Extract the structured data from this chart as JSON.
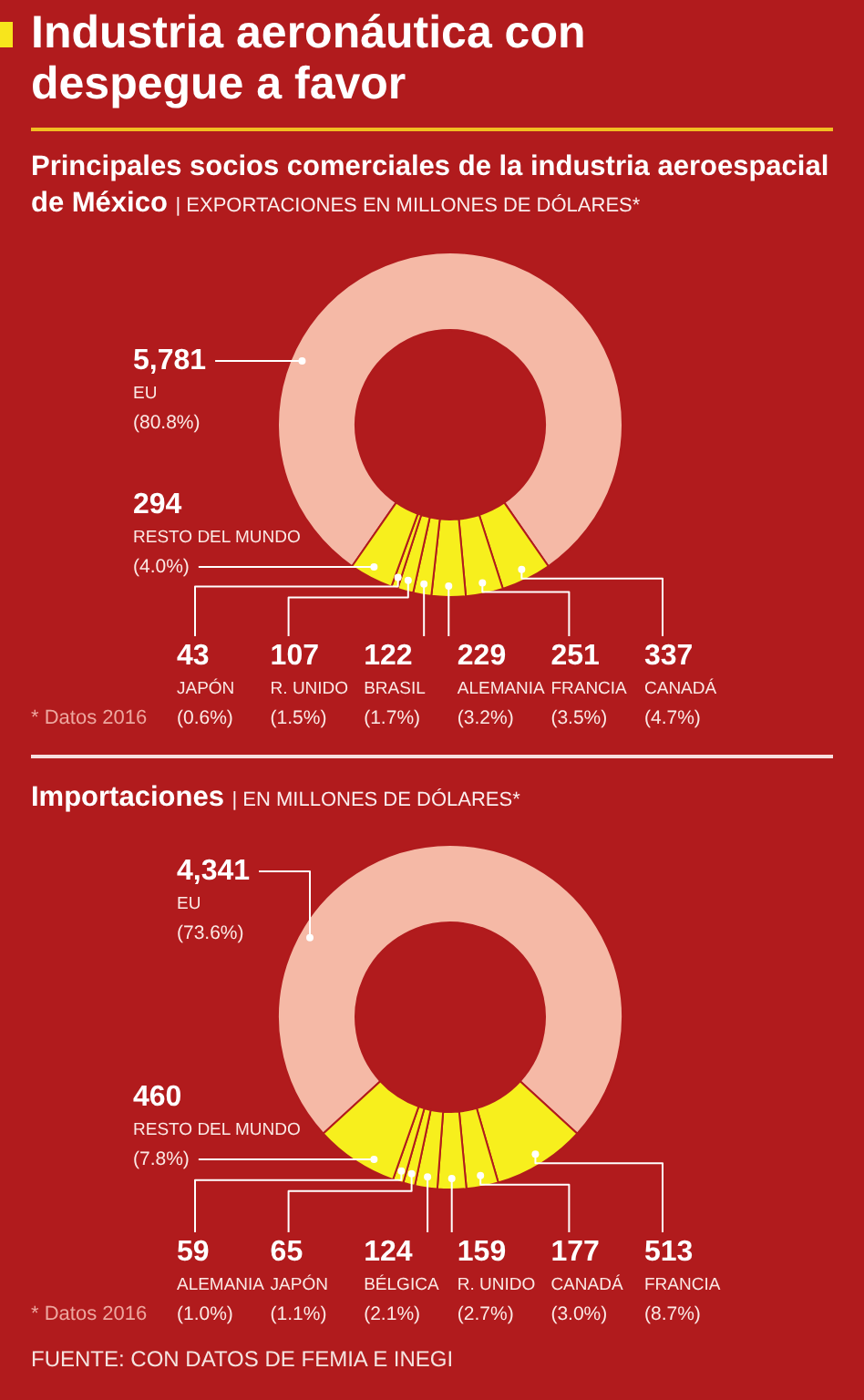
{
  "chart_data": [
    {
      "type": "donut",
      "title": "Industria aeronáutica con despegue a favor",
      "subtitle": "Principales socios comerciales de la industria aeroespacial de México | EXPORTACIONES EN MILLONES DE DÓLARES*",
      "categories": [
        "EU",
        "CANADÁ",
        "FRANCIA",
        "ALEMANIA",
        "BRASIL",
        "R. UNIDO",
        "JAPÓN",
        "RESTO DEL MUNDO"
      ],
      "values": [
        5781,
        337,
        251,
        229,
        122,
        107,
        43,
        294
      ],
      "colors": [
        "#f5b9a6",
        "#f7ef1d",
        "#f7ef1d",
        "#f7ef1d",
        "#f7ef1d",
        "#f7ef1d",
        "#f7ef1d",
        "#f7ef1d"
      ],
      "value_labels": [
        "5,781",
        "337",
        "251",
        "229",
        "122",
        "107",
        "43",
        "294"
      ],
      "annotations": [
        {
          "text": "(80.8%)",
          "x": "EU"
        },
        {
          "text": "(4.7%)",
          "x": "CANADÁ"
        },
        {
          "text": "(3.5%)",
          "x": "FRANCIA"
        },
        {
          "text": "(3.2%)",
          "x": "ALEMANIA"
        },
        {
          "text": "(1.7%)",
          "x": "BRASIL"
        },
        {
          "text": "(1.5%)",
          "x": "R. UNIDO"
        },
        {
          "text": "(0.6%)",
          "x": "JAPÓN"
        },
        {
          "text": "(4.0%)",
          "x": "RESTO DEL MUNDO"
        },
        "* Datos 2016"
      ]
    },
    {
      "type": "donut",
      "title": "Importaciones | EN MILLONES DE DÓLARES*",
      "categories": [
        "EU",
        "FRANCIA",
        "CANADÁ",
        "R. UNIDO",
        "BÉLGICA",
        "JAPÓN",
        "ALEMANIA",
        "RESTO DEL MUNDO"
      ],
      "values": [
        4341,
        513,
        177,
        159,
        124,
        65,
        59,
        460
      ],
      "colors": [
        "#f5b9a6",
        "#f7ef1d",
        "#f7ef1d",
        "#f7ef1d",
        "#f7ef1d",
        "#f7ef1d",
        "#f7ef1d",
        "#f7ef1d"
      ],
      "value_labels": [
        "4,341",
        "513",
        "177",
        "159",
        "124",
        "65",
        "59",
        "460"
      ],
      "annotations": [
        {
          "text": "(73.6%)",
          "x": "EU"
        },
        {
          "text": "(8.7%)",
          "x": "FRANCIA"
        },
        {
          "text": "(3.0%)",
          "x": "CANADÁ"
        },
        {
          "text": "(2.7%)",
          "x": "R. UNIDO"
        },
        {
          "text": "(2.1%)",
          "x": "BÉLGICA"
        },
        {
          "text": "(1.1%)",
          "x": "JAPÓN"
        },
        {
          "text": "(1.0%)",
          "x": "ALEMANIA"
        },
        {
          "text": "(7.8%)",
          "x": "RESTO DEL MUNDO"
        },
        "* Datos 2016",
        "FUENTE: CON DATOS DE FEMIA E INEGI"
      ]
    }
  ]
}
